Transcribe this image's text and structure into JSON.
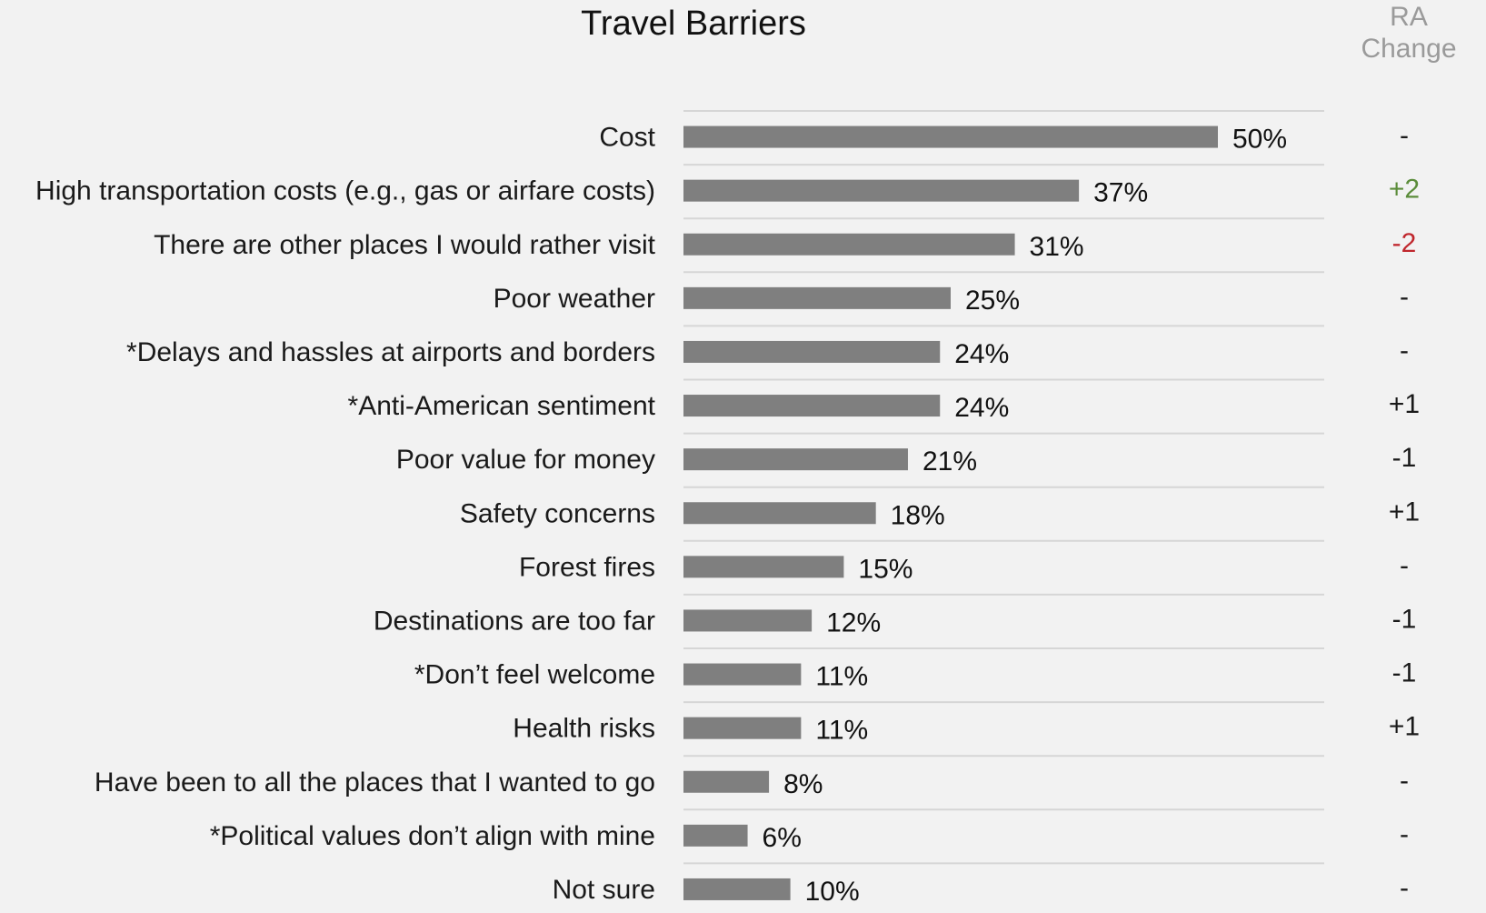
{
  "chart_data": {
    "type": "bar",
    "orientation": "horizontal",
    "title": "Travel Barriers",
    "change_header_line1": "RA",
    "change_header_line2": "Change",
    "categories": [
      "Cost",
      "High transportation costs (e.g., gas or airfare costs)",
      "There are other places I would rather visit",
      "Poor weather",
      "*Delays and hassles at airports and borders",
      "*Anti-American sentiment",
      "Poor value for money",
      "Safety concerns",
      "Forest fires",
      "Destinations are too far",
      "*Don’t feel welcome",
      "Health risks",
      "Have been to all the places that I wanted to go",
      "*Political values don’t align with mine",
      "Not sure"
    ],
    "values": [
      50,
      37,
      31,
      25,
      24,
      24,
      21,
      18,
      15,
      12,
      11,
      11,
      8,
      6,
      10
    ],
    "value_labels": [
      "50%",
      "37%",
      "31%",
      "25%",
      "24%",
      "24%",
      "21%",
      "18%",
      "15%",
      "12%",
      "11%",
      "11%",
      "8%",
      "6%",
      "10%"
    ],
    "changes": [
      "-",
      "+2",
      "-2",
      "-",
      "-",
      "+1",
      "-1",
      "+1",
      "-",
      "-1",
      "-1",
      "+1",
      "-",
      "-",
      "-"
    ],
    "change_colors": {
      "positive_highlight": "#5b8c3a",
      "negative_highlight": "#c0272d",
      "neutral": "#1a1a1a"
    },
    "highlighted_changes": {
      "1": "positive_highlight",
      "2": "negative_highlight"
    },
    "bar_color": "#7f7f7f",
    "xlim": [
      0,
      60
    ],
    "grid": true
  }
}
